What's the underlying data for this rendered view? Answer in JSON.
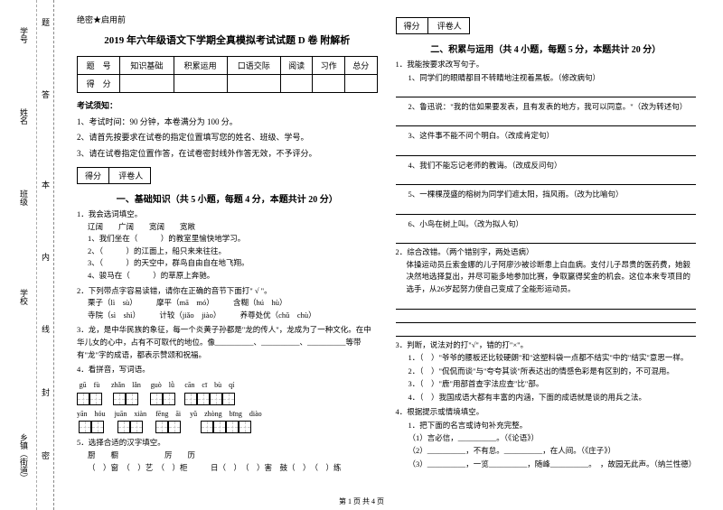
{
  "margin": {
    "labels": [
      "学号",
      "姓名",
      "班级",
      "学校",
      "乡镇（街道）"
    ],
    "cutmarks": [
      "题",
      "答",
      "本",
      "内",
      "线",
      "封",
      "密"
    ]
  },
  "confidential": "绝密★启用前",
  "title": "2019 年六年级语文下学期全真模拟考试试题 D 卷 附解析",
  "score_table": {
    "headers": [
      "题　号",
      "知识基础",
      "积累运用",
      "口语交际",
      "阅读",
      "习作",
      "总分"
    ],
    "row2": "得　分"
  },
  "instructions": {
    "title": "考试须知：",
    "items": [
      "1、考试时间：90 分钟，本卷满分为 100 分。",
      "2、请首先按要求在试卷的指定位置填写您的姓名、班级、学号。",
      "3、请在试卷指定位置作答，在试卷密封线外作答无效，不予评分。"
    ]
  },
  "scorebox": {
    "a": "得分",
    "b": "评卷人"
  },
  "section1": {
    "heading": "一、基础知识（共 5 小题，每题 4 分，本题共计 20 分）",
    "q1": {
      "stem": "1．我会选词填空。",
      "line1": "辽阔　　广阔　　宽阔　　宽敞",
      "items": [
        "1、我们坐在（　　　）的教室里愉快地学习。",
        "2、（　　　）的江面上，船只来来往往。",
        "3、（　　　）的天空中，群鸟自由自在地飞翔。",
        "4、骏马在（　　　）的草原上奔驰。"
      ]
    },
    "q2": {
      "stem": "2．下列带点字容易读错，请你在正确的音节下面打\" √ \"。",
      "items": [
        "栗子（lì　sù）　　　摩平（mā　mó）　　　含糊（hú　hù）",
        "寺院（sì　shì）　　　计较（jiǎo　jiào）　　　养尊处优（chǔ　chù）"
      ]
    },
    "q3": {
      "stem": "3．龙，是中华民族的象征，每一个炎黄子孙都是\"龙的传人\"，龙成为了一种文化。在中华儿女的心中，占有不可取代的地位。像__________、__________、__________等带有\"龙\"字的成语，都表示赞颂和祝福。"
    },
    "q4": {
      "stem": "4．看拼音，写词语。",
      "row1": [
        {
          "py": "gū　fù",
          "n": 2
        },
        {
          "py": "zhǎn　lǎn",
          "n": 2
        },
        {
          "py": "guò　lǜ",
          "n": 2
        },
        {
          "py": "cān　cī　bù　qí",
          "n": 4
        }
      ],
      "row2": [
        {
          "py": "yān　hóu",
          "n": 2
        },
        {
          "py": "juān　xiàn",
          "n": 2
        },
        {
          "py": "fēng　āi",
          "n": 2
        },
        {
          "py": "yǔ　zhòng　bīng　diào",
          "n": 4
        }
      ]
    },
    "q5": {
      "stem": "5．选择合适的汉字填空。",
      "line1": "厨　　橱　　　　　　厉　　历",
      "line2": "（　）窗　（　）艺　（　）柜　　　日（　）　（　）害　鼓（　）　（　）练"
    }
  },
  "section2": {
    "heading": "二、积累与运用（共 4 小题，每题 5 分，本题共计 20 分）",
    "q1": {
      "stem": "1．我能按要求改写句子。",
      "items": [
        "1、同学们的眼睛都目不转睛地注视着黑板。（修改病句）",
        "2、鲁迅说：\"我的信如果要发表，且有发表的地方，我可以同意。\"（改为转述句）",
        "3、这件事不能不问个明白。（改成肯定句）",
        "4、我们不能忘记老师的教诲。（改成反问句）",
        "5、一棵棵茂盛的榕树为同学们遮太阳，挡风雨。（改为比喻句）",
        "6、小鸟在树上叫。（改为拟人句）"
      ]
    },
    "q2": {
      "stem": "2．综合改错。（两个错别字，两处语病）",
      "body": "体操运动员丘索金娜的儿子阿廖沙被诊断患上白血病。支付儿子昂贵的医药费，她毅决然地选择复出，并尽可能多地参加比赛，争取赢得奖金的机会。这位本来专项目的选手，从26岁起努力使自己变成了全能形运动员。"
    },
    "q3": {
      "stem": "3．判断，说法对的打\"√\"，错的打\"×\"。",
      "items": [
        "1．（　）\"爷爷的腰板还比较硬朗\"和\"这塑料袋一点都不结实\"中的\"结实\"意思一样。",
        "2．（　）\"侃侃而谈\"与\"夸夸其谈\"所表达出的情感色彩是有区别的，不可混用。",
        "3．（　）\"鹿\"用部首查字法应查\"比\"部。",
        "4．（　）我国成语大都有丰富的内涵，下面的成语就是谈的用兵之法。",
        "　　　　围魏救赵　　暗渡陈仓　　釜底抽薪　　金蝉脱壳"
      ]
    },
    "q4": {
      "stem": "4．根据提示或情境填空。",
      "sub": "1．把下面的名言或诗句补充完整。",
      "items": [
        "（1）言必信，__________。（《论语》）",
        "（2）__________，不有怠。__________，在人间。（《庄子》）",
        "（3）__________，一览__________，随峰__________。　，故园无此声。（纳兰性德）"
      ]
    }
  },
  "footer": "第 1 页 共 4 页"
}
